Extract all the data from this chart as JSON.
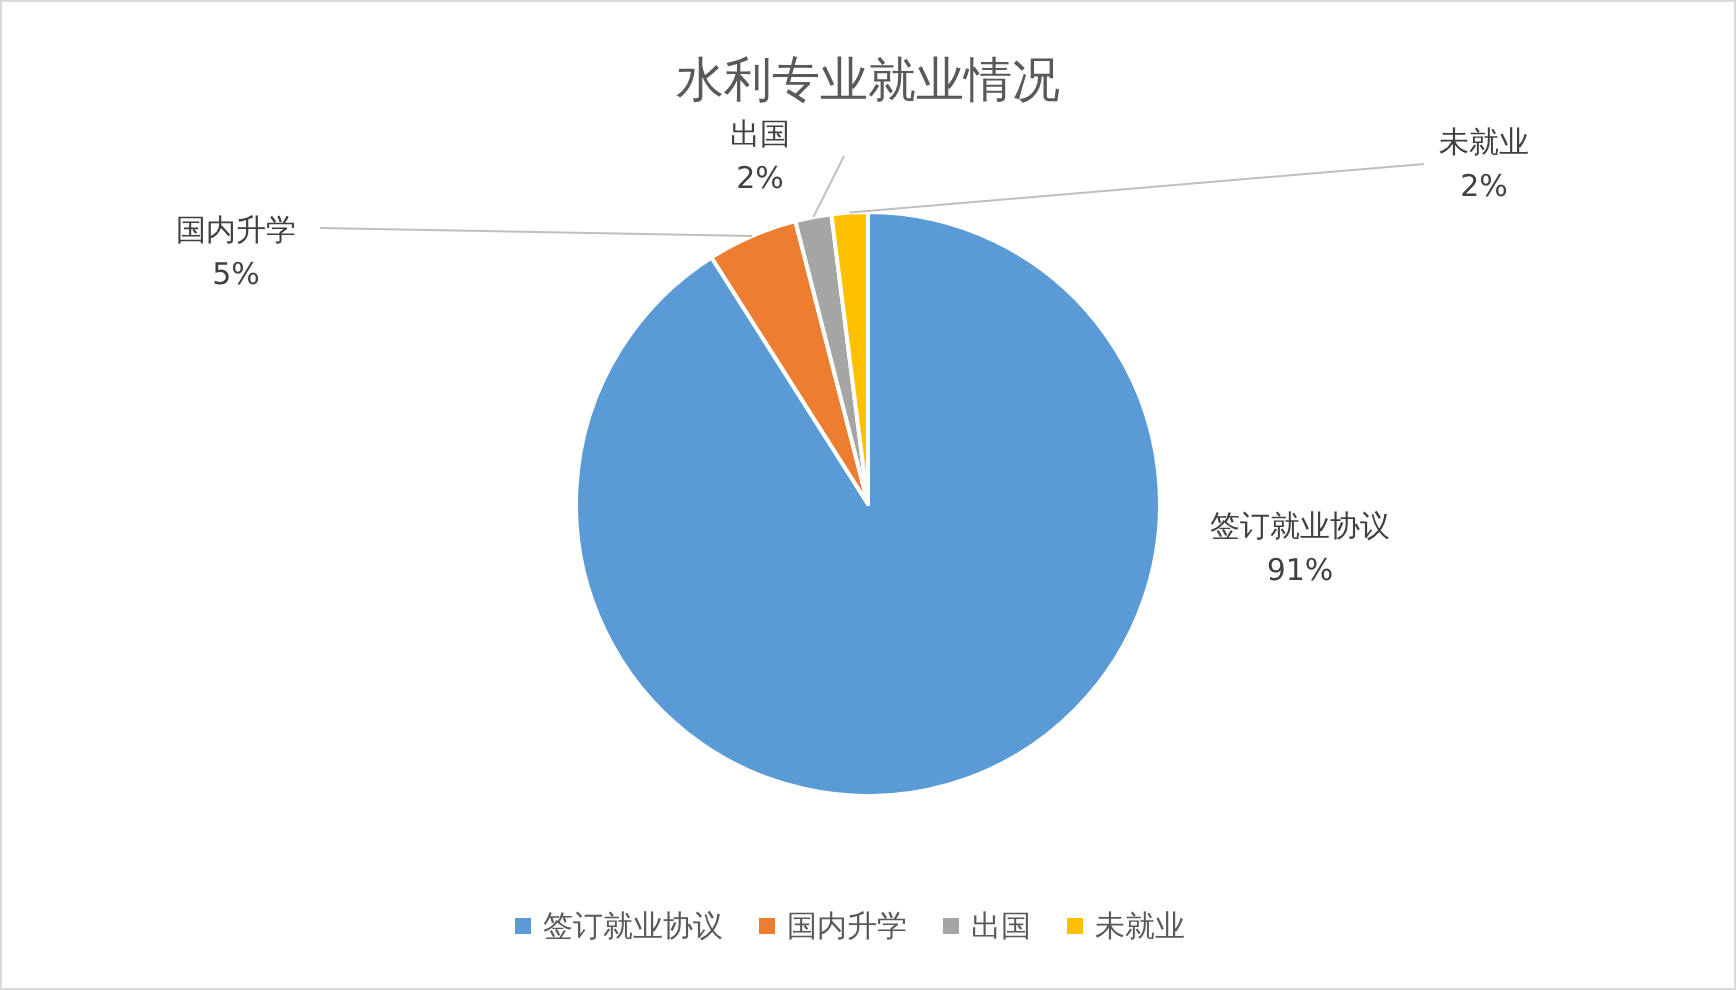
{
  "chart_data": {
    "type": "pie",
    "title": "水利专业就业情况",
    "categories": [
      "签订就业协议",
      "国内升学",
      "出国",
      "未就业"
    ],
    "values": [
      91,
      5,
      2,
      2
    ],
    "value_labels": [
      "91%",
      "5%",
      "2%",
      "2%"
    ],
    "colors": [
      "#5b9bd5",
      "#ed7d31",
      "#a5a5a5",
      "#ffc000"
    ],
    "legend": "bottom"
  }
}
